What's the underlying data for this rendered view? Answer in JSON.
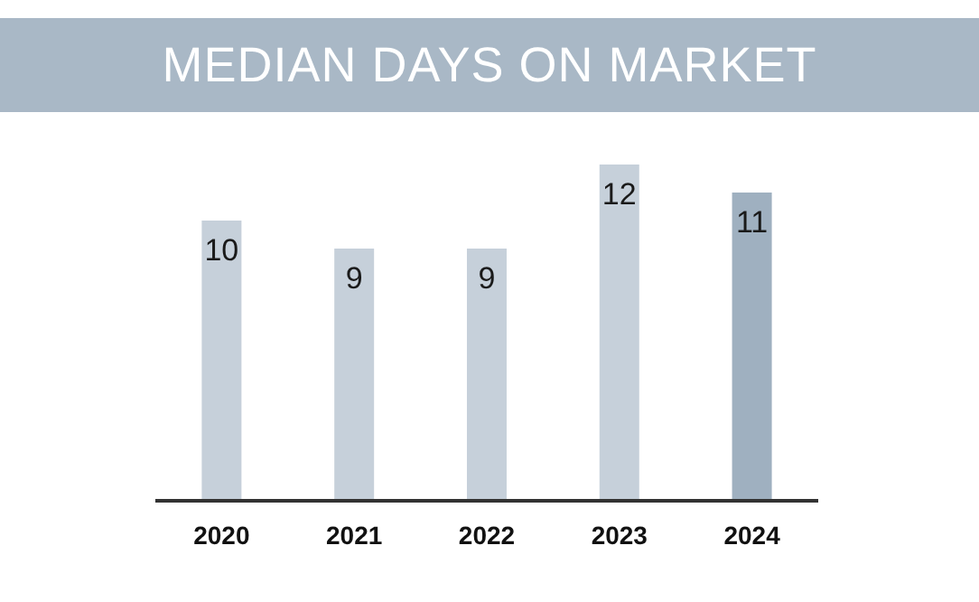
{
  "chart_data": {
    "type": "bar",
    "title": "MEDIAN DAYS ON MARKET",
    "categories": [
      "2020",
      "2021",
      "2022",
      "2023",
      "2024"
    ],
    "values": [
      10,
      9,
      9,
      12,
      11
    ],
    "colors": [
      "#c6d0da",
      "#c6d0da",
      "#c6d0da",
      "#c6d0da",
      "#9fb0c0"
    ],
    "data_labels": true
  }
}
